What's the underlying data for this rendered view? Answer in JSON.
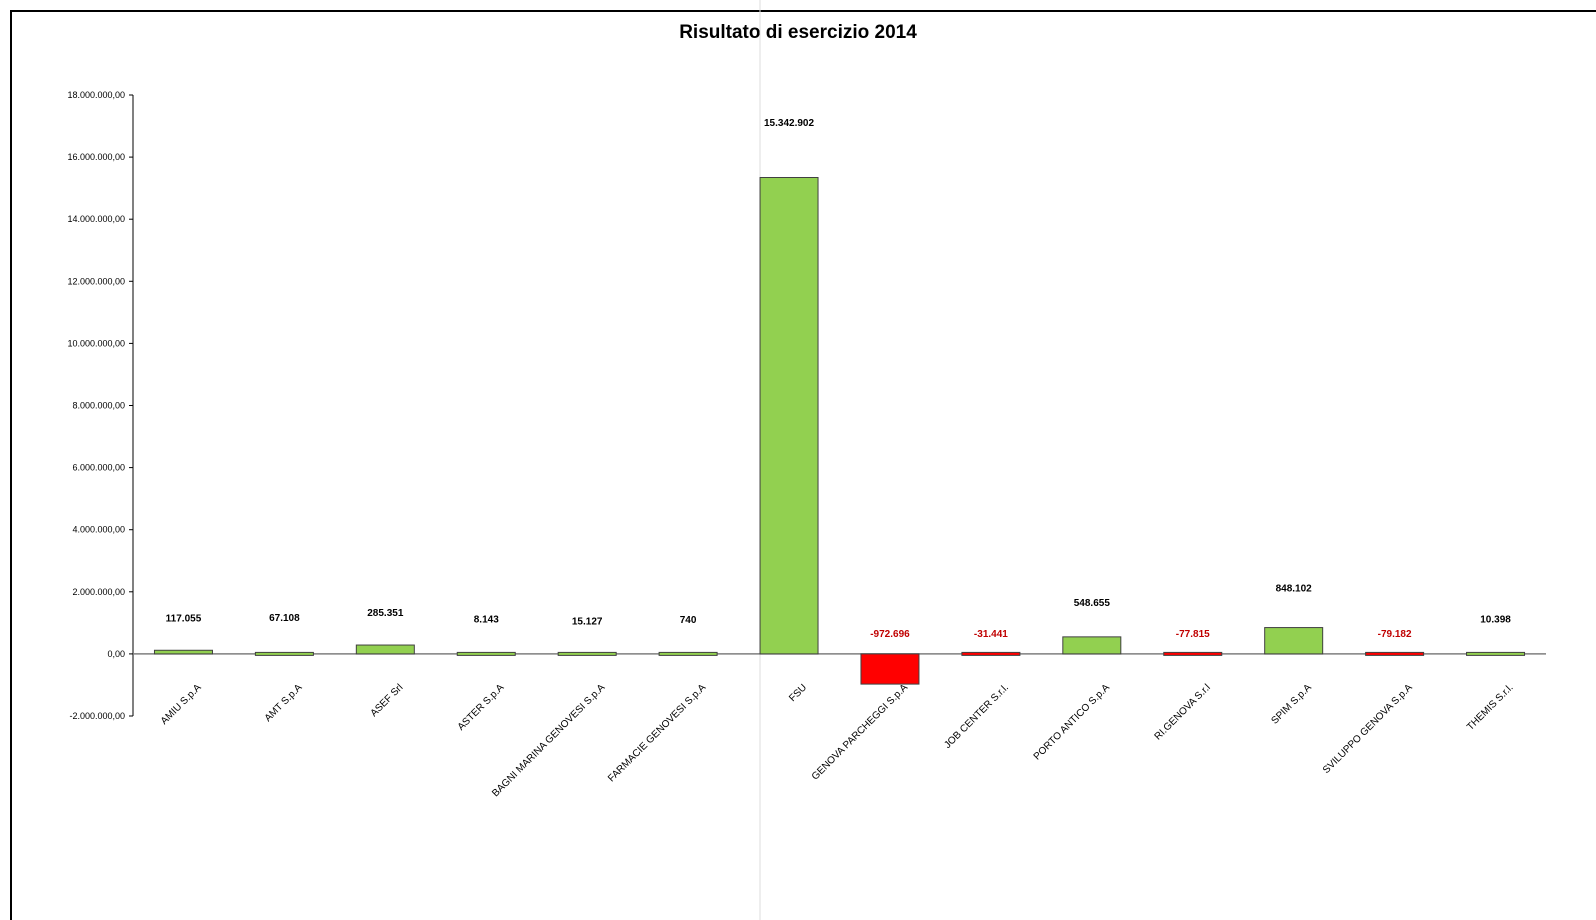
{
  "chart_data": {
    "type": "bar",
    "title": "Risultato di esercizio 2014",
    "xlabel": "",
    "ylabel": "",
    "ylim": [
      -2000000,
      18000000
    ],
    "yticks": [
      -2000000,
      0,
      2000000,
      4000000,
      6000000,
      8000000,
      10000000,
      12000000,
      14000000,
      16000000,
      18000000
    ],
    "ytick_labels": [
      "-2.000.000,00",
      "0,00",
      "2.000.000,00",
      "4.000.000,00",
      "6.000.000,00",
      "8.000.000,00",
      "10.000.000,00",
      "12.000.000,00",
      "14.000.000,00",
      "16.000.000,00",
      "18.000.000,00"
    ],
    "categories": [
      "AMIU S.p.A",
      "AMT S.p.A",
      "ASEF Srl",
      "ASTER S.p.A",
      "BAGNI MARINA GENOVESI S.p.A",
      "FARMACIE GENOVESI S.p.A",
      "FSU",
      "GENOVA PARCHEGGI S.p.A",
      "JOB CENTER S.r.l.",
      "PORTO ANTICO S.p.A",
      "RI.GENOVA S.r.l",
      "SPIM S.p.A",
      "SVILUPPO GENOVA S.p.A",
      "THEMIS S.r.l."
    ],
    "values": [
      117055,
      67108,
      285351,
      8143,
      15127,
      740,
      15342902,
      -972696,
      -31441,
      548655,
      -77815,
      848102,
      -79182,
      10398
    ],
    "data_labels": [
      "117.055",
      "67.108",
      "285.351",
      "8.143",
      "15.127",
      "740",
      "15.342.902",
      "-972.696",
      "-31.441",
      "548.655",
      "-77.815",
      "848.102",
      "-79.182",
      "10.398"
    ],
    "grid": false,
    "legend": "none",
    "colors": {
      "positive": "#92d050",
      "negative": "#ff0000",
      "positive_label": "#000000",
      "negative_label": "#c00000"
    }
  }
}
